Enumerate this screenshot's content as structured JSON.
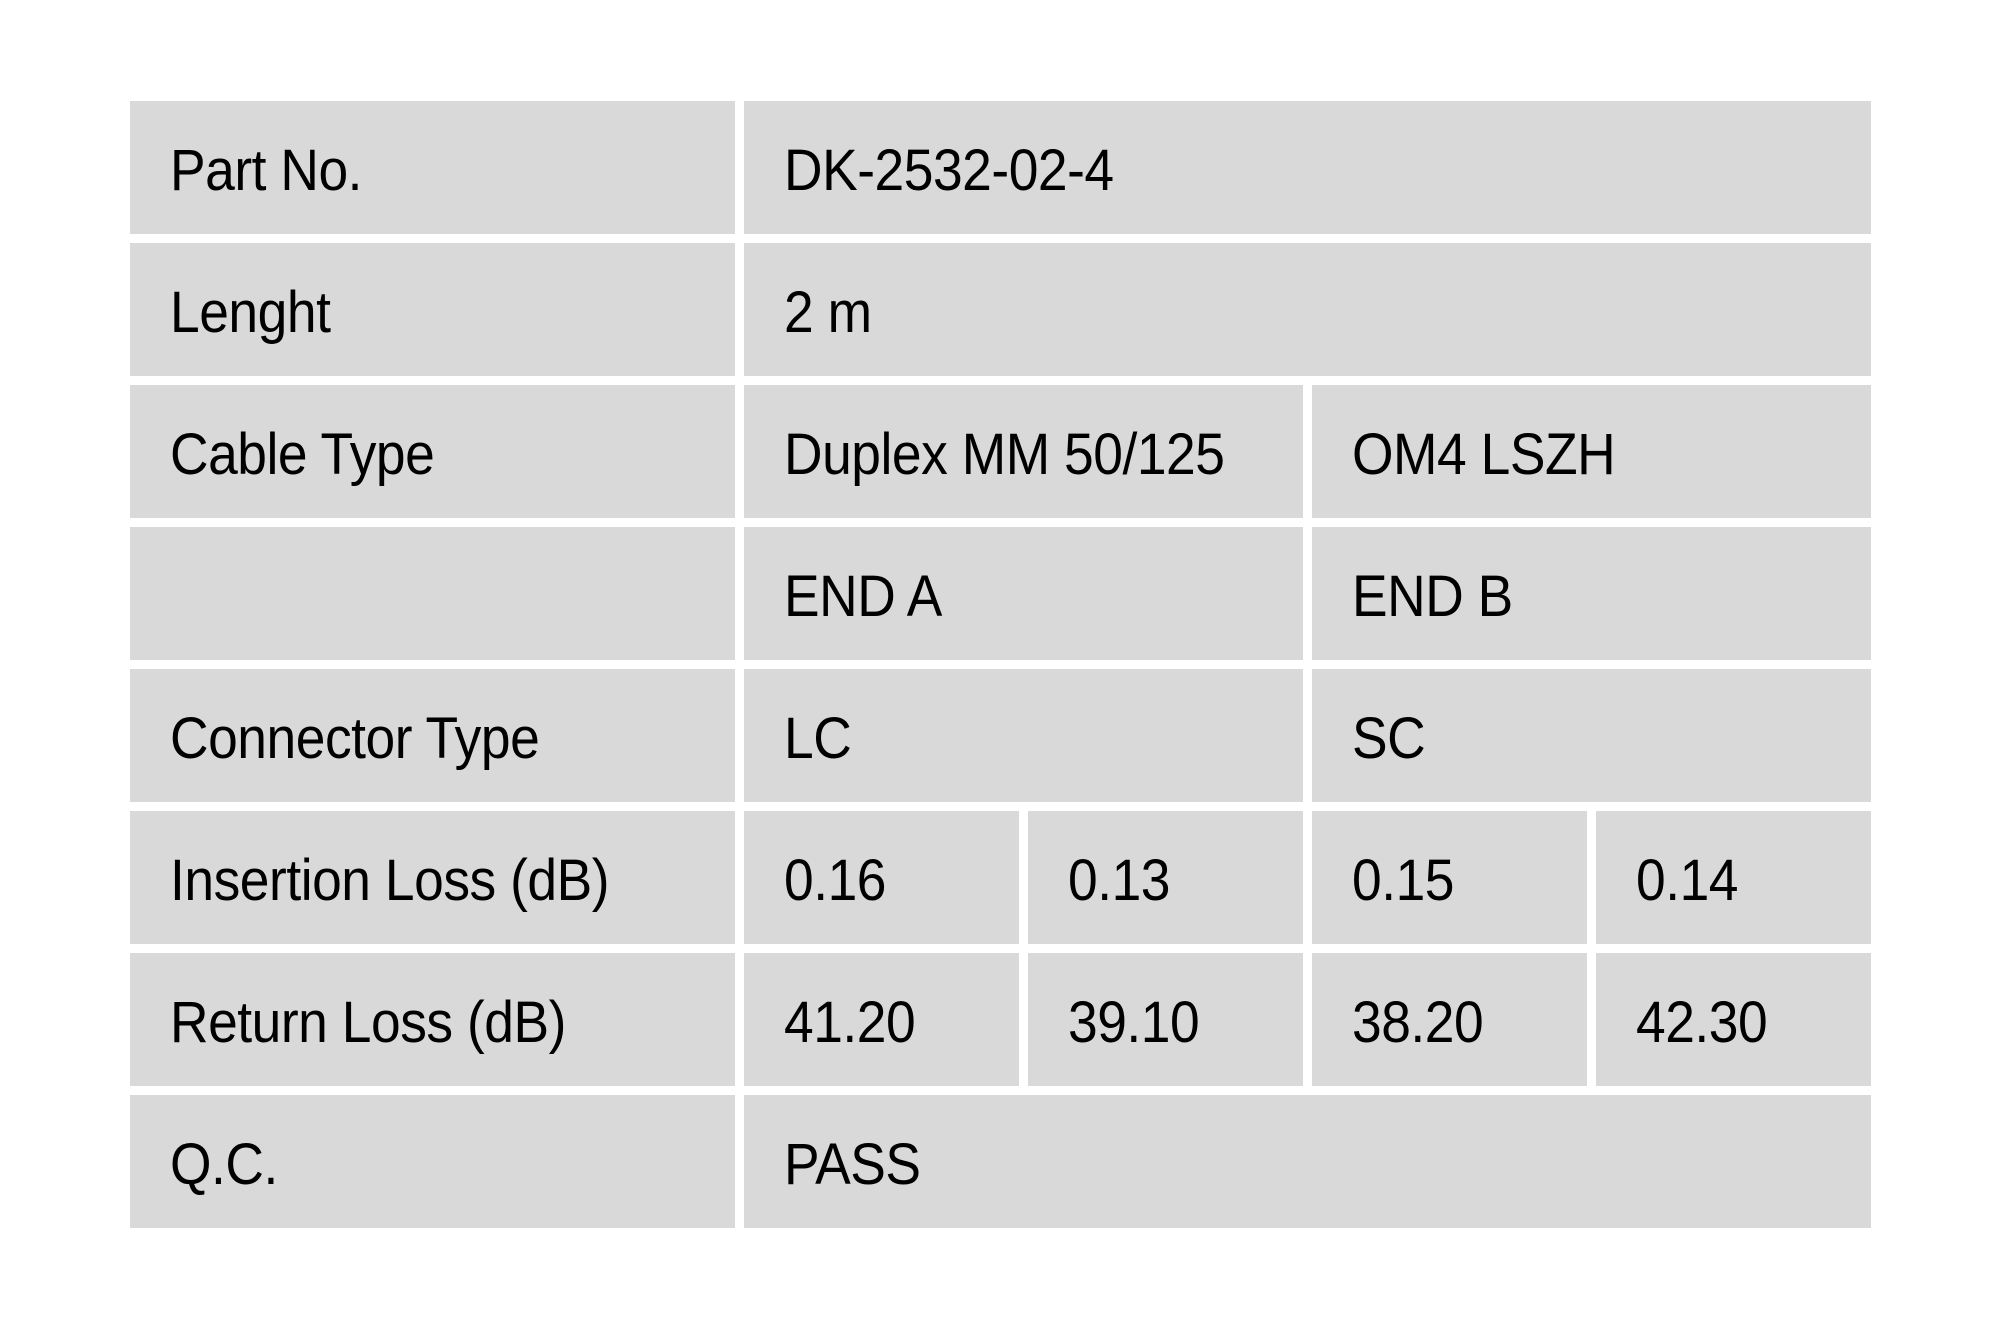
{
  "table": {
    "rows": [
      {
        "label": "Part No.",
        "values": [
          {
            "text": "DK-2532-02-4",
            "span": 4
          }
        ]
      },
      {
        "label": "Lenght",
        "values": [
          {
            "text": "2 m",
            "span": 4
          }
        ]
      },
      {
        "label": "Cable Type",
        "values": [
          {
            "text": "Duplex MM 50/125",
            "span": 2
          },
          {
            "text": "OM4 LSZH",
            "span": 2
          }
        ]
      },
      {
        "label": "",
        "values": [
          {
            "text": "END A",
            "span": 2
          },
          {
            "text": "END B",
            "span": 2
          }
        ]
      },
      {
        "label": "Connector Type",
        "values": [
          {
            "text": "LC",
            "span": 2
          },
          {
            "text": "SC",
            "span": 2
          }
        ]
      },
      {
        "label": "Insertion Loss (dB)",
        "values": [
          {
            "text": "0.16",
            "span": 1
          },
          {
            "text": "0.13",
            "span": 1
          },
          {
            "text": "0.15",
            "span": 1
          },
          {
            "text": "0.14",
            "span": 1
          }
        ]
      },
      {
        "label": "Return Loss (dB)",
        "values": [
          {
            "text": "41.20",
            "span": 1
          },
          {
            "text": "39.10",
            "span": 1
          },
          {
            "text": "38.20",
            "span": 1
          },
          {
            "text": "42.30",
            "span": 1
          }
        ]
      },
      {
        "label": "Q.C.",
        "values": [
          {
            "text": "PASS",
            "span": 4
          }
        ]
      }
    ],
    "colors": {
      "cell_bg": "#d9d9d9",
      "text": "#000000",
      "page_bg": "#ffffff"
    }
  }
}
